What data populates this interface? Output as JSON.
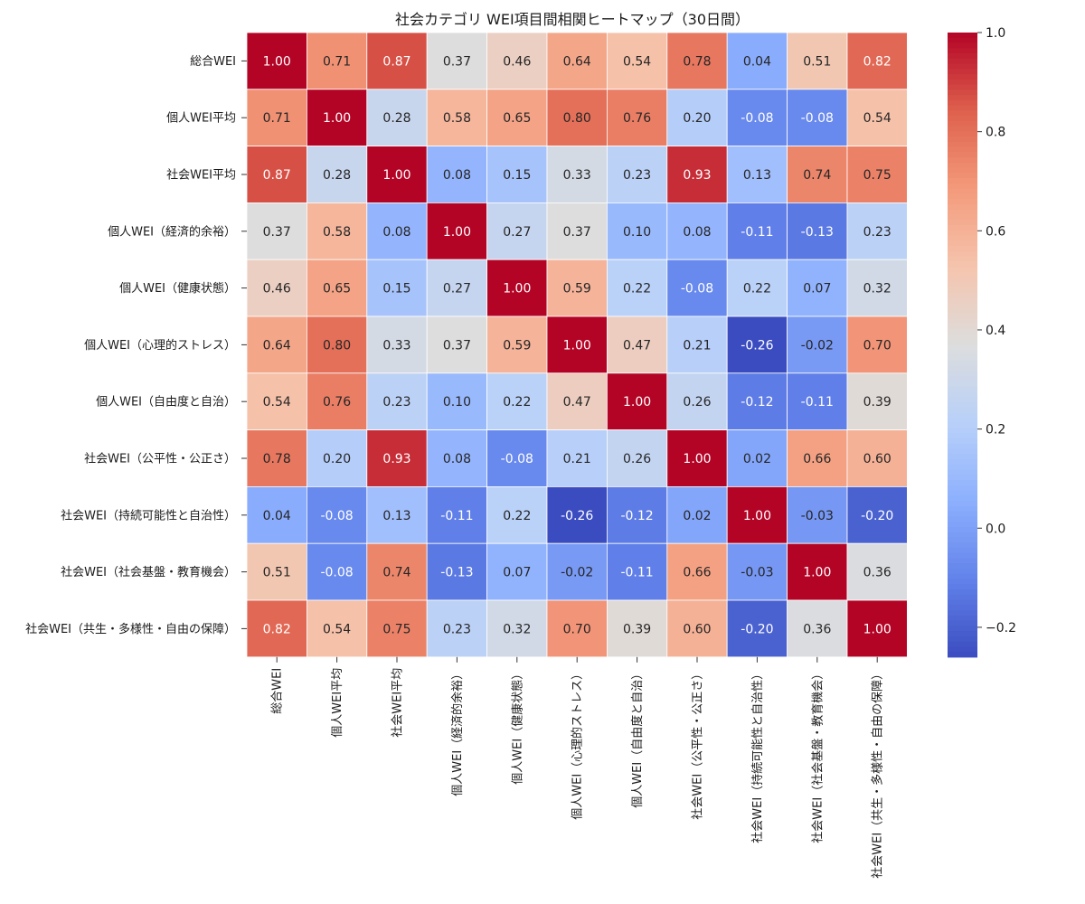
{
  "chart_data": {
    "type": "heatmap",
    "title": "社会カテゴリ WEI項目間相関ヒートマップ（30日間）",
    "labels": [
      "総合WEI",
      "個人WEI平均",
      "社会WEI平均",
      "個人WEI（経済的余裕）",
      "個人WEI（健康状態）",
      "個人WEI（心理的ストレス）",
      "個人WEI（自由度と自治）",
      "社会WEI（公平性・公正さ）",
      "社会WEI（持続可能性と自治性）",
      "社会WEI（社会基盤・教育機会）",
      "社会WEI（共生・多様性・自由の保障）"
    ],
    "matrix": [
      [
        1.0,
        0.71,
        0.87,
        0.37,
        0.46,
        0.64,
        0.54,
        0.78,
        0.04,
        0.51,
        0.82
      ],
      [
        0.71,
        1.0,
        0.28,
        0.58,
        0.65,
        0.8,
        0.76,
        0.2,
        -0.08,
        -0.08,
        0.54
      ],
      [
        0.87,
        0.28,
        1.0,
        0.08,
        0.15,
        0.33,
        0.23,
        0.93,
        0.13,
        0.74,
        0.75
      ],
      [
        0.37,
        0.58,
        0.08,
        1.0,
        0.27,
        0.37,
        0.1,
        0.08,
        -0.11,
        -0.13,
        0.23
      ],
      [
        0.46,
        0.65,
        0.15,
        0.27,
        1.0,
        0.59,
        0.22,
        -0.08,
        0.22,
        0.07,
        0.32
      ],
      [
        0.64,
        0.8,
        0.33,
        0.37,
        0.59,
        1.0,
        0.47,
        0.21,
        -0.26,
        -0.02,
        0.7
      ],
      [
        0.54,
        0.76,
        0.23,
        0.1,
        0.22,
        0.47,
        1.0,
        0.26,
        -0.12,
        -0.11,
        0.39
      ],
      [
        0.78,
        0.2,
        0.93,
        0.08,
        -0.08,
        0.21,
        0.26,
        1.0,
        0.02,
        0.66,
        0.6
      ],
      [
        0.04,
        -0.08,
        0.13,
        -0.11,
        0.22,
        -0.26,
        -0.12,
        0.02,
        1.0,
        -0.03,
        -0.2
      ],
      [
        0.51,
        -0.08,
        0.74,
        -0.13,
        0.07,
        -0.02,
        -0.11,
        0.66,
        -0.03,
        1.0,
        0.36
      ],
      [
        0.82,
        0.54,
        0.75,
        0.23,
        0.32,
        0.7,
        0.39,
        0.6,
        -0.2,
        0.36,
        1.0
      ]
    ],
    "vmin": -0.26,
    "vmax": 1.0,
    "colormap": "coolwarm",
    "colorbar_ticks": [
      "1.0",
      "0.8",
      "0.6",
      "0.4",
      "0.2",
      "0.0",
      "−0.2"
    ],
    "colorbar_tick_values": [
      1.0,
      0.8,
      0.6,
      0.4,
      0.2,
      0.0,
      -0.2
    ],
    "annotate": true,
    "value_format": "0.00"
  }
}
